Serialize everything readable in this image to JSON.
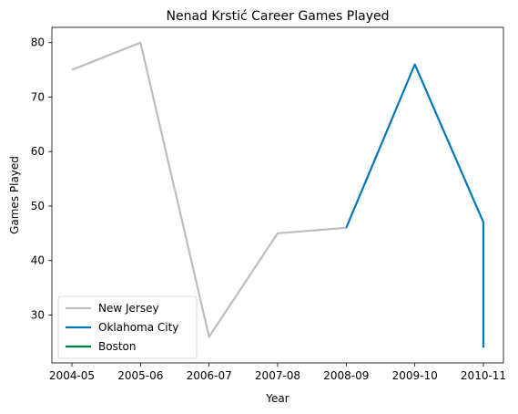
{
  "chart_data": {
    "type": "line",
    "title": "Nenad Krstić Career Games Played",
    "xlabel": "Year",
    "ylabel": "Games Played",
    "categories": [
      "2004-05",
      "2005-06",
      "2006-07",
      "2007-08",
      "2008-09",
      "2009-10",
      "2010-11"
    ],
    "yticks": [
      30,
      40,
      50,
      60,
      70,
      80
    ],
    "ylim": [
      21.2,
      82.8
    ],
    "grid": false,
    "legend_position": "lower-left",
    "series": [
      {
        "name": "New Jersey",
        "color": "#bdbdbd",
        "points": [
          {
            "x": "2004-05",
            "y": 75
          },
          {
            "x": "2005-06",
            "y": 80
          },
          {
            "x": "2006-07",
            "y": 26
          },
          {
            "x": "2007-08",
            "y": 45
          },
          {
            "x": "2008-09",
            "y": 46
          }
        ]
      },
      {
        "name": "Oklahoma City",
        "color": "#0077bb",
        "points": [
          {
            "x": "2008-09",
            "y": 46
          },
          {
            "x": "2009-10",
            "y": 76
          },
          {
            "x": "2010-11",
            "y": 47
          },
          {
            "x": "2010-11",
            "y": 24
          }
        ]
      },
      {
        "name": "Boston",
        "color": "#007a3d",
        "points": [
          {
            "x": "2010-11",
            "y": 24
          }
        ]
      }
    ]
  }
}
